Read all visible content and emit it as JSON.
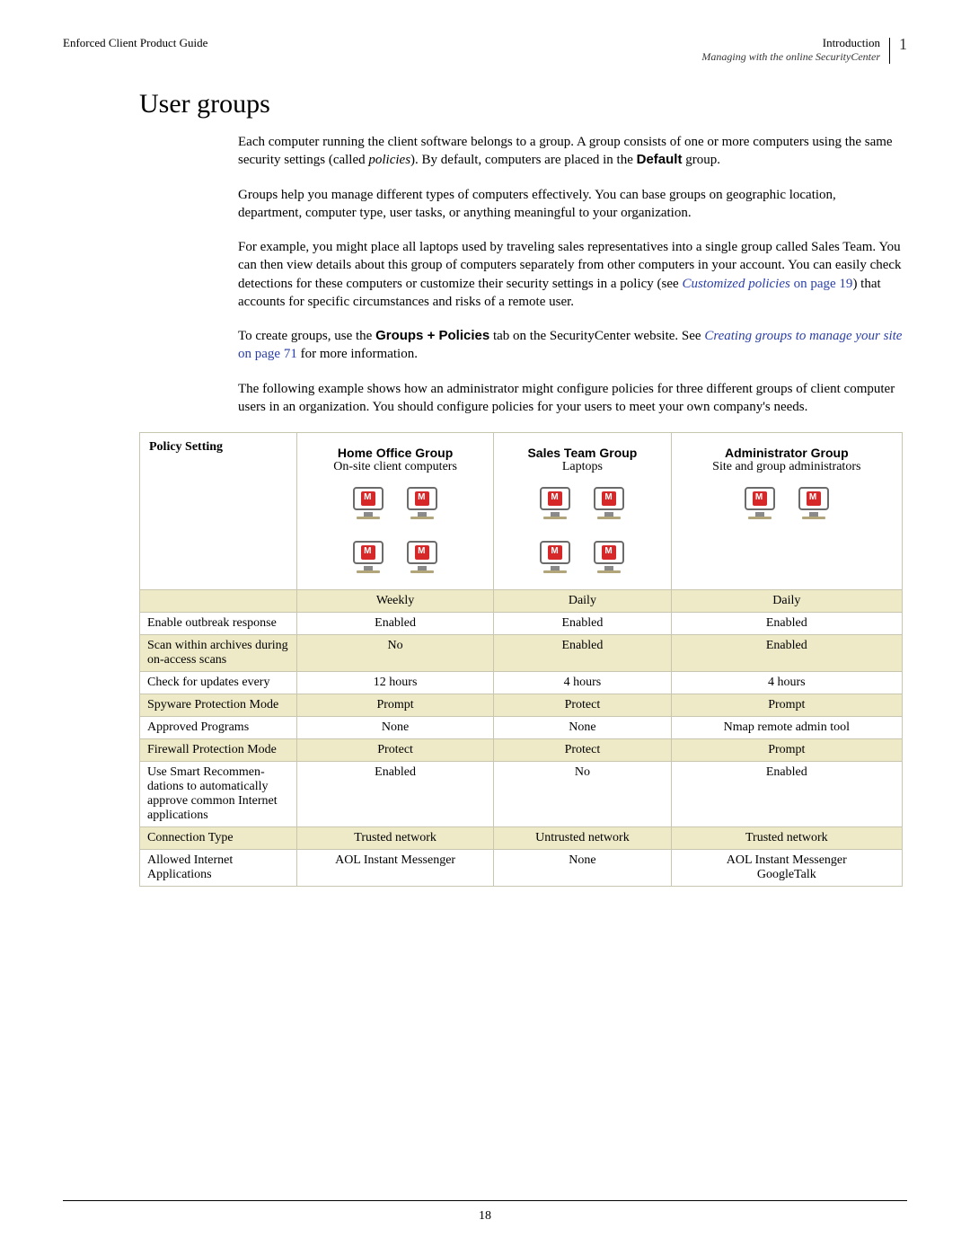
{
  "header": {
    "left": "Enforced Client Product Guide",
    "right_title": "Introduction",
    "right_sub": "Managing with the online SecurityCenter",
    "page_marker": "1"
  },
  "section_title": "User groups",
  "para1": {
    "pre": "Each computer running the client software belongs to a group. A group consists of one or more computers using the same security settings (called ",
    "italic": "policies",
    "post": "). By default, computers are placed in the ",
    "bold": "Default",
    "end": " group."
  },
  "para2": "Groups help you manage different types of computers effectively. You can base groups on geographic location, department, computer type, user tasks, or anything meaningful to your organization.",
  "para3": {
    "pre": "For example, you might place all laptops used by traveling sales representatives into a single group called Sales Team. You can then view details about this group of computers separately from other computers in your account. You can easily check detections for these computers or customize their security settings in a policy (see ",
    "link_italic": "Customized policies",
    "link_rest": " on page 19",
    "post": ") that accounts for specific circumstances and risks of a remote user."
  },
  "para4": {
    "pre": "To create groups, use the ",
    "bold": "Groups + Policies",
    "mid": " tab on the SecurityCenter website. See ",
    "link_italic": "Creating groups to manage your site",
    "link_rest": " on page 71",
    "post": " for more information."
  },
  "para5": "The following example shows how an administrator might configure policies for three different groups of client computer users in an organization. You should configure policies for your users to meet your own company's needs.",
  "table": {
    "header_label": "Policy Setting",
    "groups": [
      {
        "title": "Home Office Group",
        "sub": "On-site client computers",
        "icons": 4,
        "rows": 2
      },
      {
        "title": "Sales Team Group",
        "sub": "Laptops",
        "icons": 4,
        "rows": 2
      },
      {
        "title": "Administrator Group",
        "sub": "Site and group administrators",
        "icons": 2,
        "rows": 1
      }
    ],
    "rows": [
      {
        "alt": true,
        "label": "",
        "vals": [
          "Weekly",
          "Daily",
          "Daily"
        ]
      },
      {
        "alt": false,
        "label": "Enable outbreak response",
        "vals": [
          "Enabled",
          "Enabled",
          "Enabled"
        ]
      },
      {
        "alt": true,
        "label": "Scan within archives during on-access scans",
        "vals": [
          "No",
          "Enabled",
          "Enabled"
        ]
      },
      {
        "alt": false,
        "label": "Check for updates every",
        "vals": [
          "12 hours",
          "4 hours",
          "4 hours"
        ]
      },
      {
        "alt": true,
        "label": "Spyware Protection Mode",
        "vals": [
          "Prompt",
          "Protect",
          "Prompt"
        ]
      },
      {
        "alt": false,
        "label": "Approved Programs",
        "vals": [
          "None",
          "None",
          "Nmap remote admin tool"
        ]
      },
      {
        "alt": true,
        "label": "Firewall Protection Mode",
        "vals": [
          "Protect",
          "Protect",
          "Prompt"
        ]
      },
      {
        "alt": false,
        "label": "Use Smart Recommen-dations to automatically approve common Internet applications",
        "vals": [
          "Enabled",
          "No",
          "Enabled"
        ]
      },
      {
        "alt": true,
        "label": "Connection Type",
        "vals": [
          "Trusted network",
          "Untrusted network",
          "Trusted network"
        ]
      },
      {
        "alt": false,
        "label": "Allowed Internet Applications",
        "vals": [
          "AOL Instant Messenger",
          "None",
          "AOL Instant Messenger\nGoogleTalk"
        ]
      }
    ]
  },
  "footer_page": "18",
  "colors": {
    "link": "#2a3ea8",
    "row_alt_bg": "#eeeac8",
    "table_border": "#c9c6af",
    "shield_bg": "#d62828"
  }
}
